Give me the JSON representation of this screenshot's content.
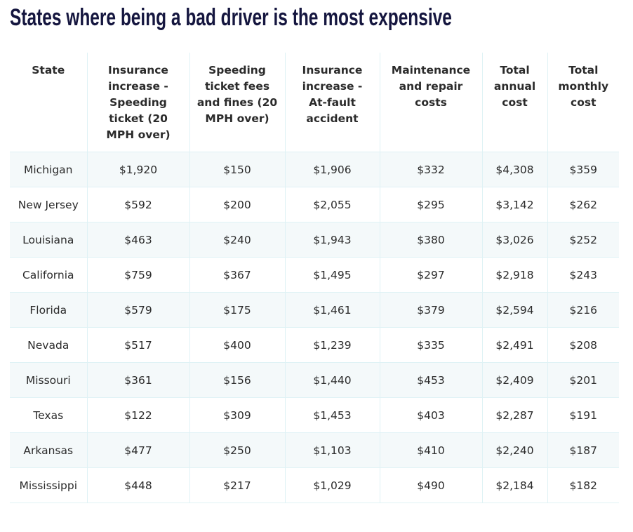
{
  "header": {
    "title": "States where being a bad driver is the most expensive"
  },
  "table": {
    "columns": [
      "State",
      "Insurance increase - Speeding ticket (20 MPH over)",
      "Speeding ticket fees and fines (20 MPH over)",
      "Insurance increase - At-fault accident",
      "Maintenance and repair costs",
      "Total annual cost",
      "Total monthly cost"
    ],
    "rows": [
      [
        "Michigan",
        "$1,920",
        "$150",
        "$1,906",
        "$332",
        "$4,308",
        "$359"
      ],
      [
        "New Jersey",
        "$592",
        "$200",
        "$2,055",
        "$295",
        "$3,142",
        "$262"
      ],
      [
        "Louisiana",
        "$463",
        "$240",
        "$1,943",
        "$380",
        "$3,026",
        "$252"
      ],
      [
        "California",
        "$759",
        "$367",
        "$1,495",
        "$297",
        "$2,918",
        "$243"
      ],
      [
        "Florida",
        "$579",
        "$175",
        "$1,461",
        "$379",
        "$2,594",
        "$216"
      ],
      [
        "Nevada",
        "$517",
        "$400",
        "$1,239",
        "$335",
        "$2,491",
        "$208"
      ],
      [
        "Missouri",
        "$361",
        "$156",
        "$1,440",
        "$453",
        "$2,409",
        "$201"
      ],
      [
        "Texas",
        "$122",
        "$309",
        "$1,453",
        "$403",
        "$2,287",
        "$191"
      ],
      [
        "Arkansas",
        "$477",
        "$250",
        "$1,103",
        "$410",
        "$2,240",
        "$187"
      ],
      [
        "Mississippi",
        "$448",
        "$217",
        "$1,029",
        "$490",
        "$2,184",
        "$182"
      ]
    ]
  }
}
